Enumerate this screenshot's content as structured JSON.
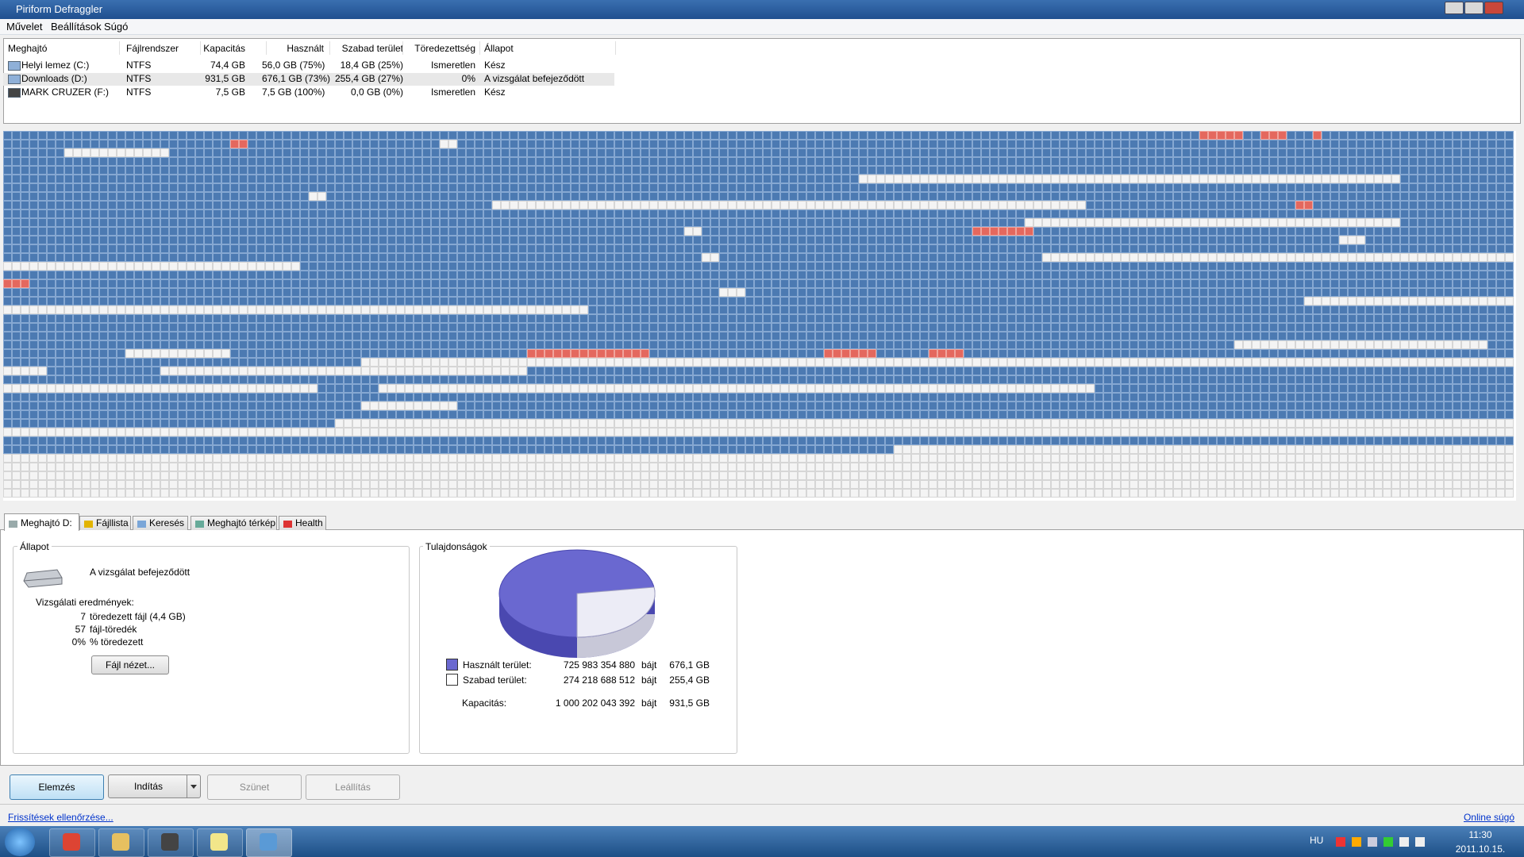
{
  "window": {
    "title": "Piriform Defraggler"
  },
  "menu": [
    "Művelet",
    "Beállítások",
    "Súgó"
  ],
  "drives": {
    "headers": [
      "Meghajtó",
      "Fájlrendszer",
      "Kapacitás",
      "Használt",
      "Szabad terület",
      "Töredezettség",
      "Állapot"
    ],
    "rows": [
      [
        "Helyi lemez (C:)",
        "NTFS",
        "74,4 GB",
        "56,0 GB (75%)",
        "18,4 GB (25%)",
        "Ismeretlen",
        "Kész"
      ],
      [
        "Downloads (D:)",
        "NTFS",
        "931,5 GB",
        "676,1 GB (73%)",
        "255,4 GB (27%)",
        "0%",
        "A vizsgálat befejeződött"
      ],
      [
        "MARK CRUZER (F:)",
        "NTFS",
        "7,5 GB",
        "7,5 GB (100%)",
        "0,0 GB (0%)",
        "Ismeretlen",
        "Kész"
      ]
    ]
  },
  "tabs": [
    "Meghajtó D:",
    "Fájllista",
    "Keresés",
    "Meghajtó térkép",
    "Health"
  ],
  "status": {
    "title": "Állapot",
    "message": "A vizsgálat befejeződött",
    "results_title": "Vizsgálati eredmények:",
    "results": [
      [
        "7",
        "töredezett fájl (4,4 GB)"
      ],
      [
        "57",
        "fájl-töredék"
      ],
      [
        "0%",
        "% töredezett"
      ]
    ],
    "button": "Fájl nézet..."
  },
  "properties": {
    "title": "Tulajdonságok",
    "rows": [
      [
        "Használt terület:",
        "725 983 354 880",
        "bájt",
        "676,1 GB"
      ],
      [
        "Szabad terület:",
        "274 218 688 512",
        "bájt",
        "255,4 GB"
      ],
      [
        "Kapacitás:",
        "1 000 202 043 392",
        "bájt",
        "931,5 GB"
      ]
    ]
  },
  "buttons": [
    "Elemzés",
    "Indítás",
    "Szünet",
    "Leállítás"
  ],
  "footer": {
    "left": "Frissítések ellenőrzése...",
    "right": "Online súgó"
  },
  "taskbar": {
    "language": "HU",
    "time": "11:30",
    "date": "2011.10.15."
  }
}
